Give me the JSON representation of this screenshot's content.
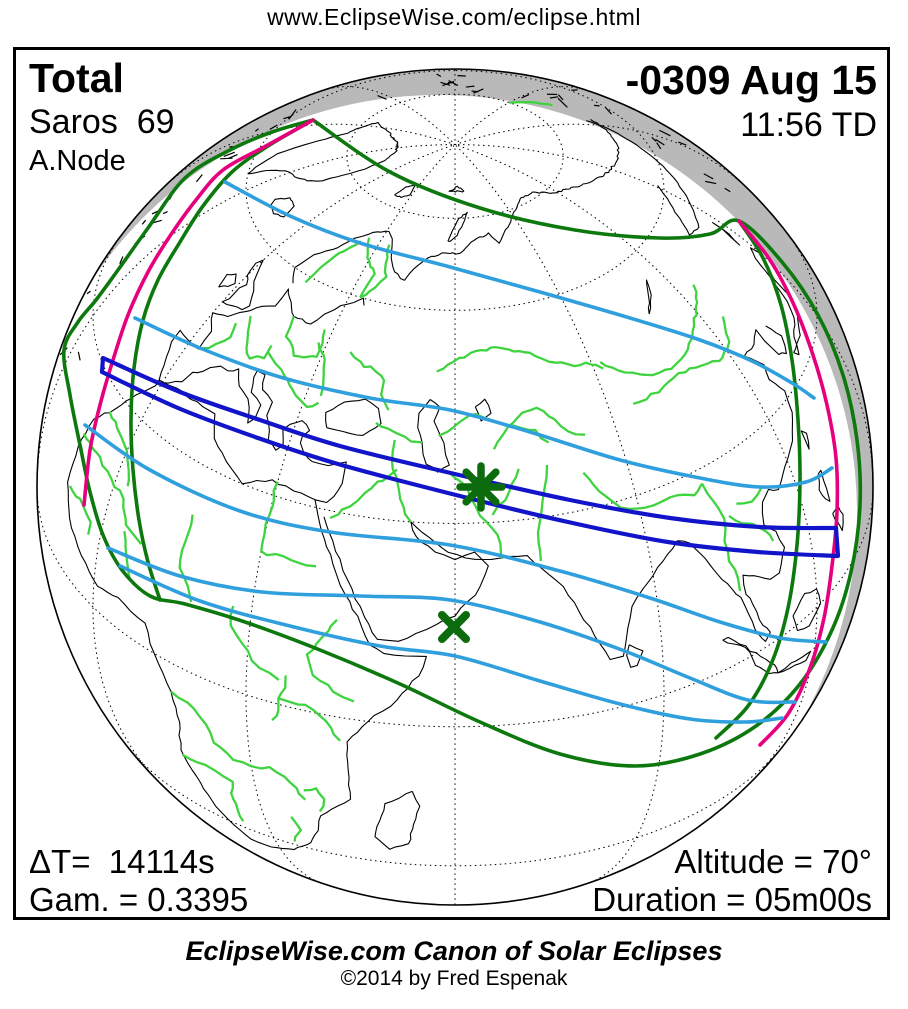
{
  "page": {
    "url_header": "www.EclipseWise.com/eclipse.html"
  },
  "eclipse_card": {
    "top_left": {
      "eclipse_type": "Total",
      "saros": "Saros  69",
      "node": "A.Node"
    },
    "top_right": {
      "date": "-0309 Aug 15",
      "time": "11:56 TD"
    },
    "bottom_left": {
      "delta_t": "ΔT=  14114s",
      "gamma": "Gam. = 0.3395"
    },
    "bottom_right": {
      "altitude": "Altitude = 70°",
      "duration": "Duration = 05m00s"
    }
  },
  "footer": {
    "title": "EclipseWise.com Canon of Solar Eclipses",
    "copyright": "©2014 by Fred Espenak"
  },
  "map": {
    "colors": {
      "background": "#ffffff",
      "text": "#000000",
      "limb_shading": "#b9b9b9",
      "coastline": "#000000",
      "graticule": "#000000",
      "country_border": "#3fd43f",
      "penumbral_limit_green": "#0d780d",
      "sunrise_sunset_magenta": "#e6007e",
      "magnitude_contour_blue": "#2f9fdd",
      "umbral_path_blue": "#1114c8",
      "marker_green": "#0c6b0c"
    }
  }
}
